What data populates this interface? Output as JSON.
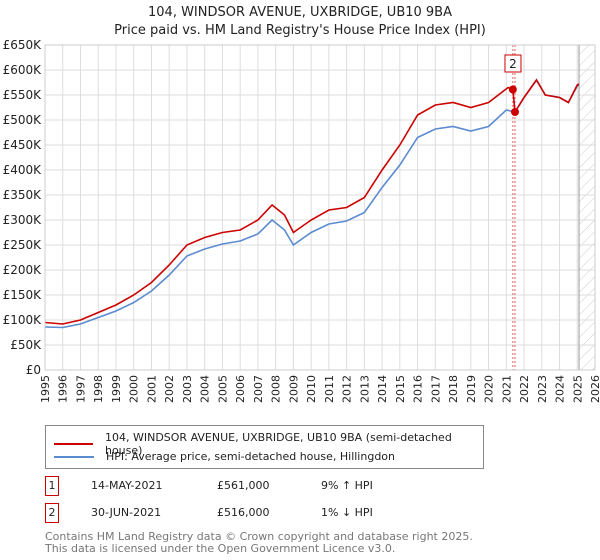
{
  "chart_data": {
    "type": "line",
    "title": "104, WINDSOR AVENUE, UXBRIDGE, UB10 9BA",
    "subtitle": "Price paid vs. HM Land Registry's House Price Index (HPI)",
    "xlim": [
      1995,
      2026
    ],
    "ylim": [
      0,
      650000
    ],
    "x_ticks": [
      "1995",
      "1996",
      "1997",
      "1998",
      "1999",
      "2000",
      "2001",
      "2002",
      "2003",
      "2004",
      "2005",
      "2006",
      "2007",
      "2008",
      "2009",
      "2010",
      "2011",
      "2012",
      "2013",
      "2014",
      "2015",
      "2016",
      "2017",
      "2018",
      "2019",
      "2020",
      "2021",
      "2022",
      "2023",
      "2024",
      "2025",
      "2026"
    ],
    "y_ticks": [
      "£0",
      "£50K",
      "£100K",
      "£150K",
      "£200K",
      "£250K",
      "£300K",
      "£350K",
      "£400K",
      "£450K",
      "£500K",
      "£550K",
      "£600K",
      "£650K"
    ],
    "grid": true,
    "series": [
      {
        "name": "104, WINDSOR AVENUE, UXBRIDGE, UB10 9BA (semi-detached house)",
        "color": "#cc0000",
        "x": [
          1995,
          1996,
          1997,
          1998,
          1999,
          2000,
          2001,
          2002,
          2003,
          2004,
          2005,
          2006,
          2007,
          2007.8,
          2008.5,
          2009,
          2010,
          2011,
          2012,
          2013,
          2014,
          2015,
          2016,
          2017,
          2018,
          2019,
          2020,
          2021.1,
          2021.37,
          2021.49,
          2022,
          2022.7,
          2023.2,
          2024,
          2024.5,
          2025,
          2025.1
        ],
        "y": [
          95000,
          92000,
          100000,
          115000,
          130000,
          150000,
          175000,
          210000,
          250000,
          265000,
          275000,
          280000,
          300000,
          330000,
          310000,
          275000,
          300000,
          320000,
          325000,
          345000,
          400000,
          450000,
          510000,
          530000,
          535000,
          525000,
          535000,
          565000,
          561000,
          516000,
          545000,
          580000,
          550000,
          545000,
          535000,
          570000,
          572000
        ]
      },
      {
        "name": "HPI: Average price, semi-detached house, Hillingdon",
        "color": "#5b8bd0",
        "x": [
          1995,
          1996,
          1997,
          1998,
          1999,
          2000,
          2001,
          2002,
          2003,
          2004,
          2005,
          2006,
          2007,
          2007.8,
          2008.5,
          2009,
          2010,
          2011,
          2012,
          2013,
          2014,
          2015,
          2016,
          2017,
          2018,
          2019,
          2020,
          2021,
          2021.49,
          2022,
          2022.7,
          2023.2,
          2024,
          2024.5,
          2025,
          2025.1
        ],
        "y": [
          86000,
          85000,
          92000,
          105000,
          118000,
          135000,
          158000,
          190000,
          228000,
          242000,
          252000,
          258000,
          272000,
          300000,
          280000,
          250000,
          275000,
          292000,
          298000,
          315000,
          365000,
          410000,
          465000,
          482000,
          487000,
          478000,
          487000,
          520000,
          516000,
          545000,
          580000,
          550000,
          545000,
          535000,
          568000,
          570000
        ]
      }
    ],
    "sales": [
      {
        "label": "1",
        "x": 2021.37,
        "y": 561000
      },
      {
        "label": "2",
        "x": 2021.49,
        "y": 516000
      }
    ],
    "projection_start": 2025.1
  },
  "legend": {
    "items": [
      "104, WINDSOR AVENUE, UXBRIDGE, UB10 9BA (semi-detached house)",
      "HPI: Average price, semi-detached house, Hillingdon"
    ]
  },
  "transactions": [
    {
      "num": "1",
      "date": "14-MAY-2021",
      "price": "£561,000",
      "hpi": "9% ↑ HPI"
    },
    {
      "num": "2",
      "date": "30-JUN-2021",
      "price": "£516,000",
      "hpi": "1% ↓ HPI"
    }
  ],
  "footer": [
    "Contains HM Land Registry data © Crown copyright and database right 2025.",
    "This data is licensed under the Open Government Licence v3.0."
  ]
}
